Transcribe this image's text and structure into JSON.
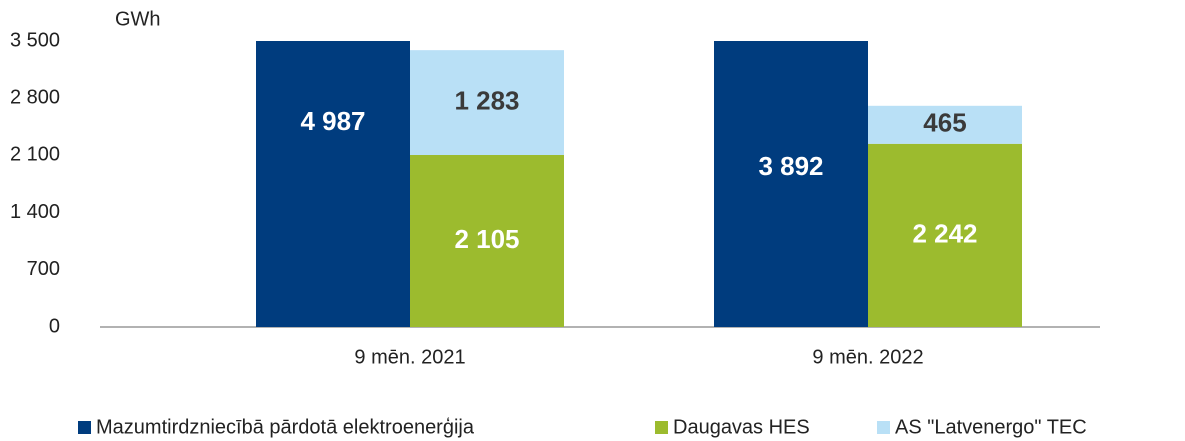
{
  "chart_data": {
    "type": "bar",
    "y_label": "GWh",
    "categories": [
      "9 mēn. 2021",
      "9 mēn. 2022"
    ],
    "series": [
      {
        "name": "Mazumtirdzniecībā pārdotā elektroenerģija",
        "color": "#003c7e",
        "label_color": "#ffffff",
        "stack": 0,
        "values": [
          4987,
          3892
        ],
        "value_labels": [
          "4 987",
          "3 892"
        ]
      },
      {
        "name": "Daugavas HES",
        "color": "#9cbb2e",
        "label_color": "#ffffff",
        "stack": 1,
        "values": [
          2105,
          2242
        ],
        "value_labels": [
          "2 105",
          "2 242"
        ]
      },
      {
        "name": "AS \"Latvenergo\" TEC",
        "color": "#b9e0f6",
        "label_color": "#3a3a3a",
        "stack": 1,
        "values": [
          1283,
          465
        ],
        "value_labels": [
          "1 283",
          "465"
        ]
      }
    ],
    "ylim": [
      0,
      3500
    ],
    "yticks": [
      0,
      700,
      {
        "value": 1400,
        "label": "1 400"
      },
      {
        "value": 2100,
        "label": "2 100"
      },
      {
        "value": 2800,
        "label": "2 800"
      },
      {
        "value": 3500,
        "label": "3 500"
      }
    ],
    "grid": false
  }
}
